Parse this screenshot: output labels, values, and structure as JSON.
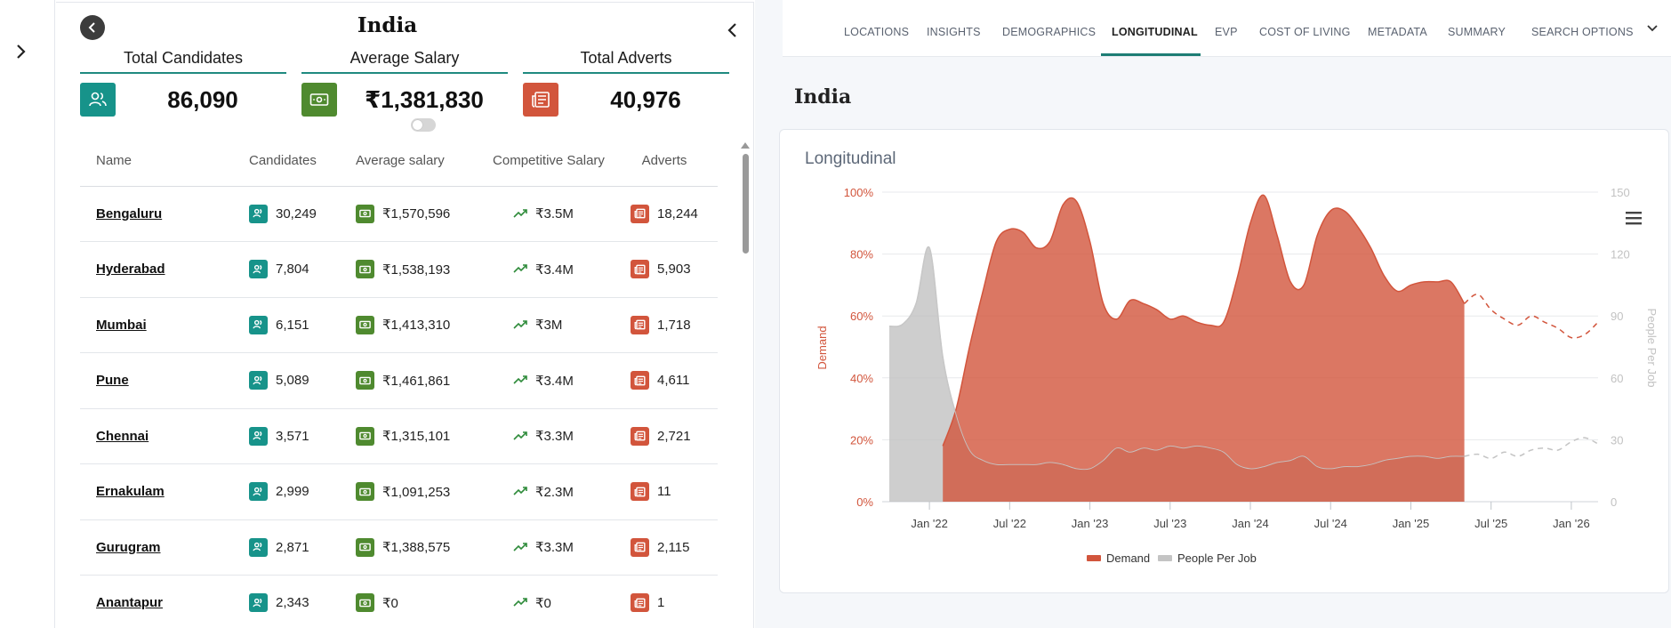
{
  "sidebar": {
    "expand_icon": "chevron-right-icon"
  },
  "panel": {
    "title": "India",
    "back_icon": "chevron-left-icon",
    "collapse_icon": "chevron-left-icon"
  },
  "stats": [
    {
      "label": "Total Candidates",
      "value": "86,090",
      "icon": "users-icon",
      "color": "#17938a"
    },
    {
      "label": "Average Salary",
      "value": "₹1,381,830",
      "icon": "banknote-icon",
      "color": "#4f8a2f"
    },
    {
      "label": "Total Adverts",
      "value": "40,976",
      "icon": "newspaper-icon",
      "color": "#d2553c"
    }
  ],
  "table": {
    "headers": {
      "name": "Name",
      "candidates": "Candidates",
      "avg_salary": "Average salary",
      "competitive_salary": "Competitive Salary",
      "adverts": "Adverts"
    },
    "rows": [
      {
        "name": "Bengaluru",
        "candidates": "30,249",
        "avg_salary": "₹1,570,596",
        "competitive": "₹3.5M",
        "adverts": "18,244"
      },
      {
        "name": "Hyderabad",
        "candidates": "7,804",
        "avg_salary": "₹1,538,193",
        "competitive": "₹3.4M",
        "adverts": "5,903"
      },
      {
        "name": "Mumbai",
        "candidates": "6,151",
        "avg_salary": "₹1,413,310",
        "competitive": "₹3M",
        "adverts": "1,718"
      },
      {
        "name": "Pune",
        "candidates": "5,089",
        "avg_salary": "₹1,461,861",
        "competitive": "₹3.4M",
        "adverts": "4,611"
      },
      {
        "name": "Chennai",
        "candidates": "3,571",
        "avg_salary": "₹1,315,101",
        "competitive": "₹3.3M",
        "adverts": "2,721"
      },
      {
        "name": "Ernakulam",
        "candidates": "2,999",
        "avg_salary": "₹1,091,253",
        "competitive": "₹2.3M",
        "adverts": "11"
      },
      {
        "name": "Gurugram",
        "candidates": "2,871",
        "avg_salary": "₹1,388,575",
        "competitive": "₹3.3M",
        "adverts": "2,115"
      },
      {
        "name": "Anantapur",
        "candidates": "2,343",
        "avg_salary": "₹0",
        "competitive": "₹0",
        "adverts": "1"
      }
    ]
  },
  "tabs": {
    "items": [
      "LOCATIONS",
      "INSIGHTS",
      "DEMOGRAPHICS",
      "LONGITUDINAL",
      "EVP",
      "COST OF LIVING",
      "METADATA",
      "SUMMARY",
      "SEARCH OPTIONS"
    ],
    "active": "LONGITUDINAL",
    "more_icon": "chevron-down-icon"
  },
  "content": {
    "title": "India",
    "card_title": "Longitudinal",
    "menu_icon": "hamburger-menu-icon"
  },
  "colors": {
    "teal": "#17938a",
    "green": "#4f8a2f",
    "red": "#d2553c",
    "demand": "#d2553c",
    "people": "#bdbdbd"
  },
  "chart_data": {
    "type": "area",
    "x": [
      "2021-10",
      "2021-11",
      "2021-12",
      "2022-01",
      "2022-02",
      "2022-03",
      "2022-04",
      "2022-05",
      "2022-06",
      "2022-07",
      "2022-08",
      "2022-09",
      "2022-10",
      "2022-11",
      "2022-12",
      "2023-01",
      "2023-02",
      "2023-03",
      "2023-04",
      "2023-05",
      "2023-06",
      "2023-07",
      "2023-08",
      "2023-09",
      "2023-10",
      "2023-11",
      "2023-12",
      "2024-01",
      "2024-02",
      "2024-03",
      "2024-04",
      "2024-05",
      "2024-06",
      "2024-07",
      "2024-08",
      "2024-09",
      "2024-10",
      "2024-11",
      "2024-12",
      "2025-01",
      "2025-02",
      "2025-03",
      "2025-04",
      "2025-05",
      "2025-06",
      "2025-07",
      "2025-08",
      "2025-09",
      "2025-10",
      "2025-11",
      "2025-12",
      "2026-01",
      "2026-02",
      "2026-03"
    ],
    "series": [
      {
        "name": "Demand",
        "axis": "left",
        "unit": "%",
        "values": [
          null,
          null,
          null,
          null,
          18,
          30,
          50,
          68,
          84,
          88,
          87,
          82,
          84,
          96,
          97,
          84,
          64,
          59,
          65,
          64,
          62,
          59,
          60,
          58,
          57,
          58,
          72,
          90,
          99,
          86,
          71,
          70,
          86,
          94,
          94,
          89,
          82,
          73,
          68,
          70,
          71,
          71,
          71,
          64,
          67,
          62,
          59,
          57,
          60,
          58,
          56,
          53,
          54,
          58
        ],
        "forecast_from": "2025-05"
      },
      {
        "name": "People Per Job",
        "axis": "right",
        "values": [
          85,
          86,
          96,
          123,
          70,
          42,
          25,
          20,
          18,
          18,
          18,
          18,
          19,
          18,
          16,
          16,
          20,
          26,
          24,
          26,
          25,
          27,
          26,
          27,
          26,
          24,
          18,
          16,
          17,
          19,
          20,
          22,
          17,
          16,
          17,
          17,
          18,
          20,
          21,
          22,
          22,
          21,
          22,
          22,
          23,
          21,
          24,
          22,
          25,
          26,
          25,
          29,
          31,
          28
        ],
        "forecast_from": "2025-05"
      }
    ],
    "x_ticks": [
      "Jan '22",
      "Jul '22",
      "Jan '23",
      "Jul '23",
      "Jan '24",
      "Jul '24",
      "Jan '25",
      "Jul '25",
      "Jan '26"
    ],
    "ylabel": "Demand",
    "ylabel_right": "People Per Job",
    "ylim": [
      0,
      100
    ],
    "ylim_right": [
      0,
      150
    ],
    "y_ticks": [
      "0%",
      "20%",
      "40%",
      "60%",
      "80%",
      "100%"
    ],
    "y_ticks_right": [
      "0",
      "30",
      "60",
      "90",
      "120",
      "150"
    ],
    "grid": true,
    "legend": "bottom-center",
    "legend_entries": [
      "Demand",
      "People Per Job"
    ]
  }
}
